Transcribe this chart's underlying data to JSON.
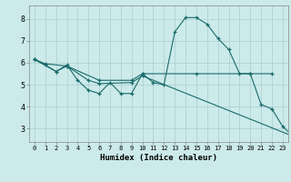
{
  "xlabel": "Humidex (Indice chaleur)",
  "bg_color": "#cceaea",
  "line_color": "#1a6b6b",
  "grid_color": "#aacece",
  "xlim": [
    -0.5,
    23.5
  ],
  "ylim": [
    2.4,
    8.6
  ],
  "xticks": [
    0,
    1,
    2,
    3,
    4,
    5,
    6,
    7,
    8,
    9,
    10,
    11,
    12,
    13,
    14,
    15,
    16,
    17,
    18,
    19,
    20,
    21,
    22,
    23
  ],
  "yticks": [
    3,
    4,
    5,
    6,
    7,
    8
  ],
  "series1": [
    [
      0,
      6.15
    ],
    [
      1,
      5.9
    ],
    [
      2,
      5.6
    ],
    [
      3,
      5.9
    ],
    [
      4,
      5.2
    ],
    [
      5,
      4.75
    ],
    [
      6,
      4.6
    ],
    [
      7,
      5.1
    ],
    [
      8,
      4.6
    ],
    [
      9,
      4.6
    ],
    [
      10,
      5.5
    ],
    [
      11,
      5.1
    ],
    [
      12,
      5.0
    ],
    [
      13,
      7.4
    ],
    [
      14,
      8.05
    ],
    [
      15,
      8.05
    ],
    [
      16,
      7.75
    ],
    [
      17,
      7.1
    ],
    [
      18,
      6.6
    ],
    [
      19,
      5.5
    ],
    [
      20,
      5.5
    ],
    [
      21,
      4.1
    ],
    [
      22,
      3.9
    ],
    [
      23,
      3.1
    ],
    [
      24,
      2.65
    ]
  ],
  "series2": [
    [
      0,
      6.15
    ],
    [
      2,
      5.6
    ],
    [
      3,
      5.85
    ],
    [
      5,
      5.2
    ],
    [
      6,
      5.05
    ],
    [
      9,
      5.1
    ],
    [
      10,
      5.4
    ],
    [
      24,
      2.65
    ]
  ],
  "series3": [
    [
      0,
      6.15
    ],
    [
      1,
      5.95
    ],
    [
      3,
      5.85
    ],
    [
      6,
      5.2
    ],
    [
      9,
      5.2
    ],
    [
      10,
      5.5
    ],
    [
      15,
      5.5
    ],
    [
      20,
      5.5
    ],
    [
      22,
      5.5
    ]
  ]
}
